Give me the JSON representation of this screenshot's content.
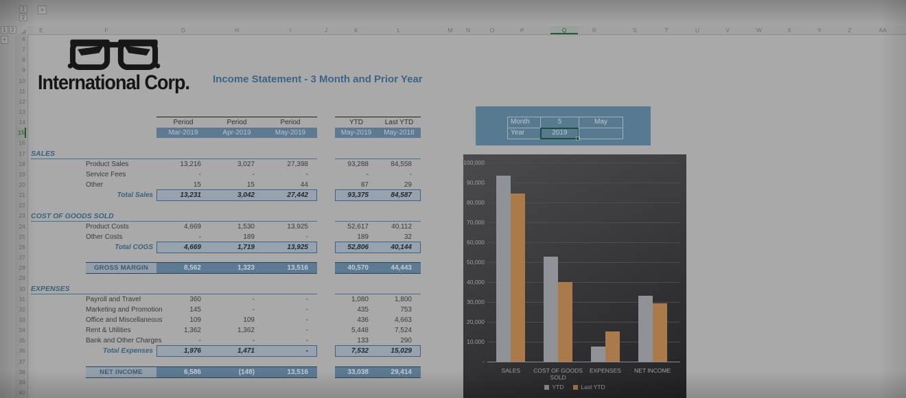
{
  "sheet": {
    "columns": [
      "E",
      "F",
      "G",
      "H",
      "I",
      "J",
      "K",
      "L",
      "M",
      "N",
      "O",
      "P",
      "Q",
      "R",
      "S",
      "T",
      "U",
      "V",
      "W",
      "X",
      "Y",
      "Z",
      "AA"
    ],
    "selected_column": "Q",
    "row_start": 6,
    "row_end": 40,
    "selected_row": 15,
    "outline": {
      "level1": "1",
      "level2": "2",
      "expand": "+"
    }
  },
  "logo": {
    "company": "International Corp."
  },
  "title": "Income Statement - 3 Month and Prior Year",
  "statement": {
    "header": {
      "period": "Period",
      "ytd": "YTD",
      "last_ytd": "Last YTD"
    },
    "periods": [
      "Mar-2019",
      "Apr-2019",
      "May-2019",
      "May-2019",
      "May-2018"
    ],
    "sales": {
      "section": "SALES",
      "rows": [
        {
          "label": "Product Sales",
          "v": [
            "13,216",
            "3,027",
            "27,398",
            "93,288",
            "84,558"
          ]
        },
        {
          "label": "Service Fees",
          "v": [
            "-",
            "-",
            "-",
            "-",
            "-"
          ]
        },
        {
          "label": "Other",
          "v": [
            "15",
            "15",
            "44",
            "87",
            "29"
          ]
        }
      ],
      "total": {
        "label": "Total Sales",
        "v": [
          "13,231",
          "3,042",
          "27,442",
          "93,375",
          "84,587"
        ]
      }
    },
    "cogs": {
      "section": "COST OF GOODS SOLD",
      "rows": [
        {
          "label": "Product Costs",
          "v": [
            "4,669",
            "1,530",
            "13,925",
            "52,617",
            "40,112"
          ]
        },
        {
          "label": "Other Costs",
          "v": [
            "-",
            "189",
            "-",
            "189",
            "32"
          ]
        }
      ],
      "total": {
        "label": "Total COGS",
        "v": [
          "4,669",
          "1,719",
          "13,925",
          "52,806",
          "40,144"
        ]
      }
    },
    "gross_margin": {
      "label": "GROSS MARGIN",
      "v": [
        "8,562",
        "1,323",
        "13,516",
        "40,570",
        "44,443"
      ]
    },
    "expenses": {
      "section": "EXPENSES",
      "rows": [
        {
          "label": "Payroll and Travel",
          "v": [
            "360",
            "-",
            "-",
            "1,080",
            "1,800"
          ]
        },
        {
          "label": "Marketing and Promotion",
          "v": [
            "145",
            "-",
            "-",
            "435",
            "753"
          ]
        },
        {
          "label": "Office and Miscellaneous",
          "v": [
            "109",
            "109",
            "-",
            "436",
            "4,663"
          ]
        },
        {
          "label": "Rent & Utilities",
          "v": [
            "1,362",
            "1,362",
            "-",
            "5,448",
            "7,524"
          ]
        },
        {
          "label": "Bank and Other Charges",
          "v": [
            "-",
            "-",
            "-",
            "133",
            "290"
          ]
        }
      ],
      "total": {
        "label": "Total Expenses",
        "v": [
          "1,976",
          "1,471",
          "-",
          "7,532",
          "15,029"
        ]
      }
    },
    "net_income": {
      "label": "NET INCOME",
      "v": [
        "6,586",
        "(148)",
        "13,516",
        "33,038",
        "29,414"
      ]
    }
  },
  "controls": {
    "month_label": "Month",
    "month_number": "5",
    "month_name": "May",
    "year_label": "Year",
    "year_value": "2019"
  },
  "chart_data": {
    "type": "bar",
    "categories": [
      "SALES",
      "COST OF GOODS SOLD",
      "EXPENSES",
      "NET INCOME"
    ],
    "series": [
      {
        "name": "YTD",
        "color": "#8f9296",
        "values": [
          93375,
          52806,
          7532,
          33038
        ]
      },
      {
        "name": "Last YTD",
        "color": "#aa7a4b",
        "values": [
          84587,
          40144,
          15029,
          29414
        ]
      }
    ],
    "ylim": [
      0,
      100000
    ],
    "ytick_step": 10000,
    "ytick_zero_label": "-",
    "grid": true,
    "legend_position": "bottom",
    "background": "dark"
  }
}
